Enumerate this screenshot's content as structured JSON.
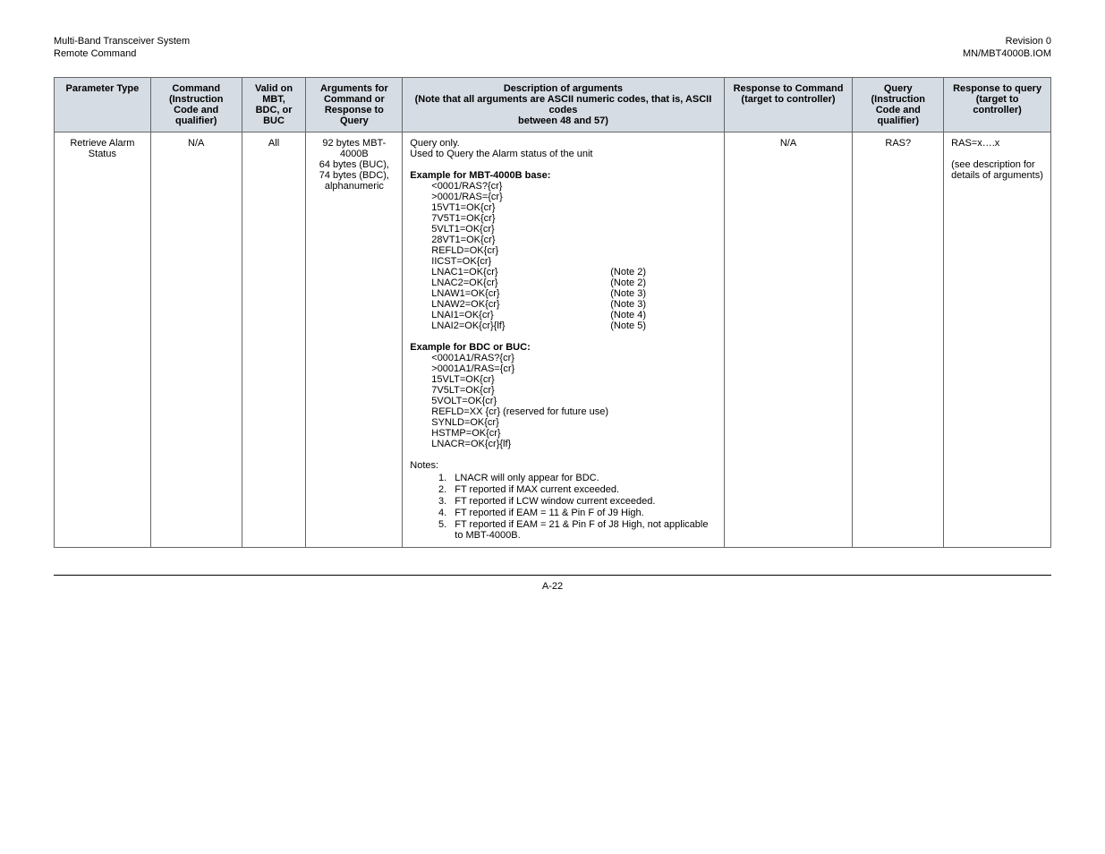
{
  "header": {
    "left1": "Multi-Band Transceiver System",
    "left2": "Remote Command",
    "right1": "Revision 0",
    "right2": "MN/MBT4000B.IOM"
  },
  "columns": {
    "c1": "Parameter Type",
    "c2": "Command (Instruction Code and qualifier)",
    "c3": "Valid on MBT, BDC, or BUC",
    "c4": "Arguments for Command or Response to Query",
    "c5a": "Description of arguments",
    "c5b": "(Note that all arguments are ASCII numeric codes, that is, ASCII codes",
    "c5c": "between 48 and 57)",
    "c6": "Response to Command (target to controller)",
    "c7": "Query (Instruction Code and qualifier)",
    "c8": "Response to query (target to controller)"
  },
  "row": {
    "param": "Retrieve Alarm Status",
    "cmd": "N/A",
    "valid": "All",
    "args": "92 bytes MBT-4000B\n64 bytes (BUC),\n74 bytes (BDC), alphanumeric",
    "desc": {
      "intro1": "Query only.",
      "intro2": "Used to Query the Alarm status of the unit",
      "ex1_title": "Example for MBT-4000B base:",
      "ex1_lines": [
        "<0001/RAS?{cr}",
        ">0001/RAS={cr}",
        "15VT1=OK{cr}",
        "7V5T1=OK{cr}",
        "5VLT1=OK{cr}",
        "28VT1=OK{cr}",
        "REFLD=OK{cr}",
        "IICST=OK{cr}"
      ],
      "ex1_noted": [
        {
          "l": "LNAC1=OK{cr}",
          "r": "(Note 2)"
        },
        {
          "l": "LNAC2=OK{cr}",
          "r": "(Note 2)"
        },
        {
          "l": "LNAW1=OK{cr}",
          "r": "(Note 3)"
        },
        {
          "l": "LNAW2=OK{cr}",
          "r": "(Note 3)"
        },
        {
          "l": "LNAI1=OK{cr}",
          "r": "(Note 4)"
        },
        {
          "l": "LNAI2=OK{cr}{lf}",
          "r": "(Note 5)"
        }
      ],
      "ex2_title": "Example for BDC or BUC:",
      "ex2_lines": [
        "<0001A1/RAS?{cr}",
        ">0001A1/RAS={cr}",
        "15VLT=OK{cr}",
        "7V5LT=OK{cr}",
        "5VOLT=OK{cr}",
        "REFLD=XX {cr} (reserved for future use)",
        "SYNLD=OK{cr}",
        "HSTMP=OK{cr}",
        "LNACR=OK{cr}{lf}"
      ],
      "notes_title": "Notes:",
      "notes": [
        "LNACR will only appear for BDC.",
        "FT reported if MAX current exceeded.",
        "FT reported if LCW window current exceeded.",
        "FT reported if EAM = 11 & Pin F of J9 High.",
        "FT reported if EAM = 21 & Pin F of J8 High, not applicable to MBT-4000B."
      ]
    },
    "resp_cmd": "N/A",
    "query": "RAS?",
    "resp_q1": "RAS=x….x",
    "resp_q2": "(see description for details of arguments)"
  },
  "footer": "A-22"
}
